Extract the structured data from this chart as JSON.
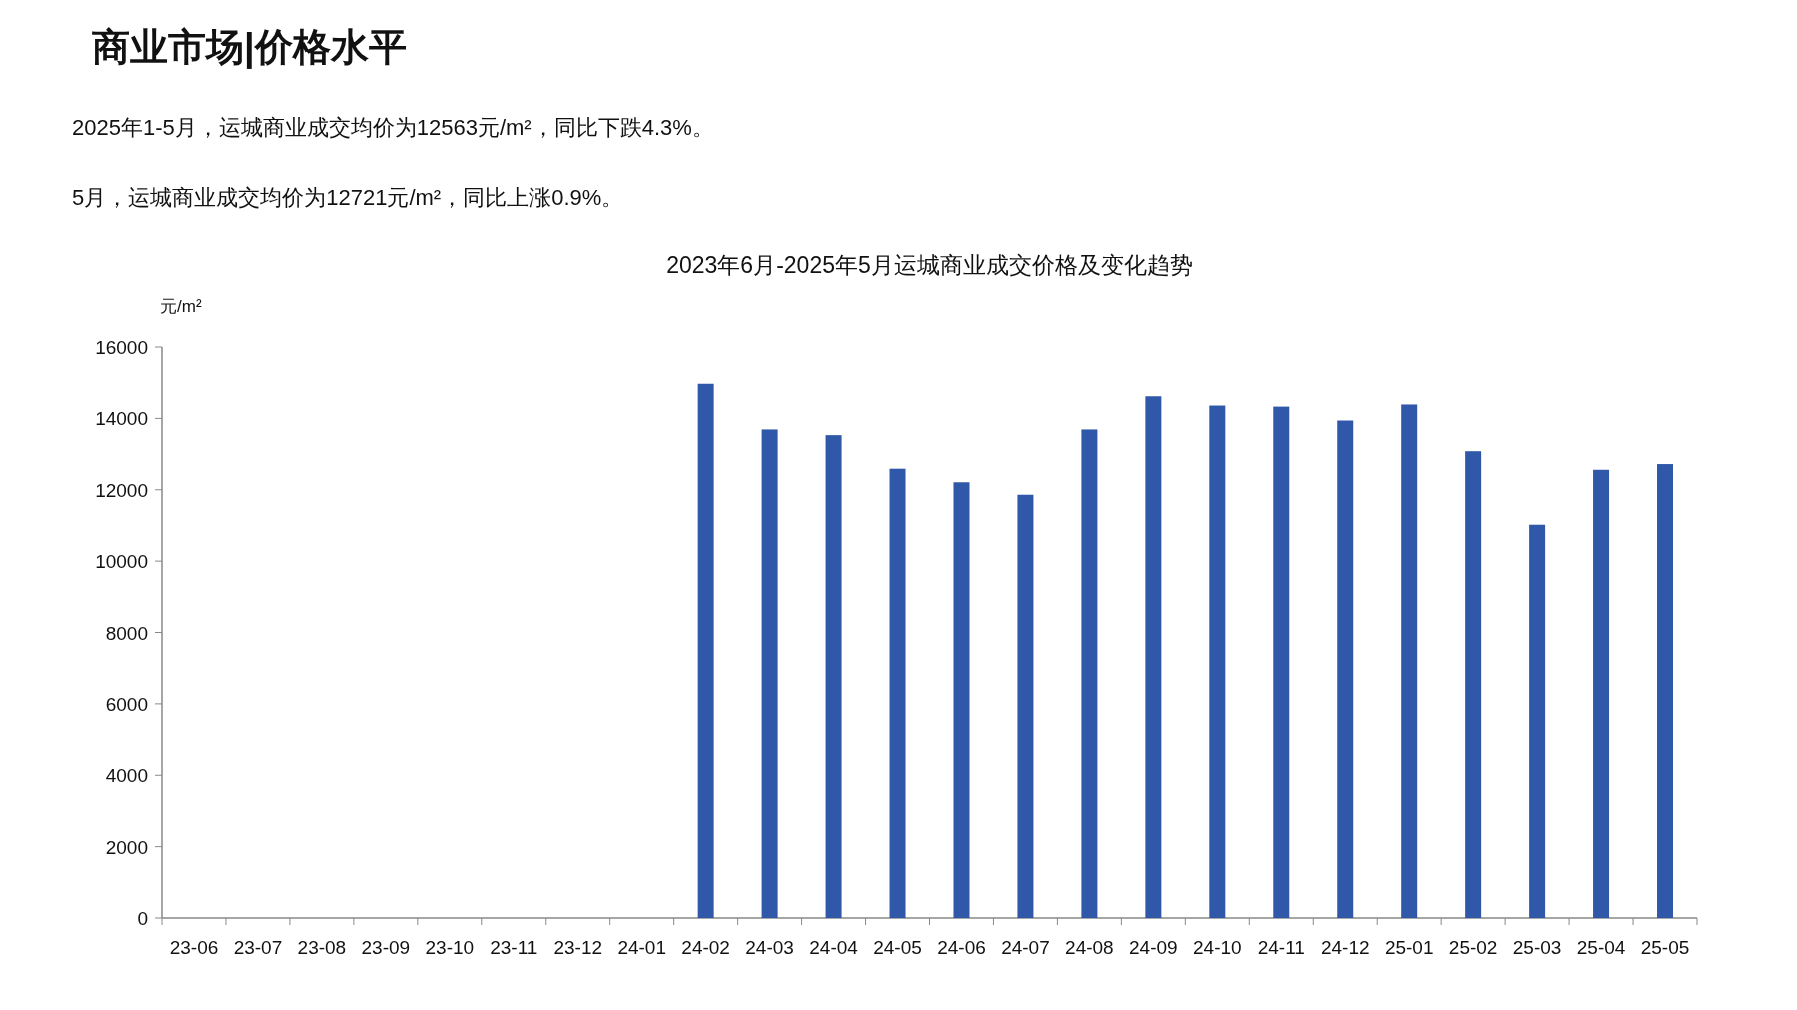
{
  "chart_data": {
    "type": "bar",
    "title": "商业市场|价格水平",
    "subtitle": "2023年6月-2025年5月运城商业成交价格及变化趋势",
    "ylabel": "元/m²",
    "annotations": [
      "2025年1-5月，运城商业成交均价为12563元/m²，同比下跌4.3%。",
      "5月，运城商业成交均价为12721元/m²，同比上涨0.9%。"
    ],
    "categories": [
      "23-06",
      "23-07",
      "23-08",
      "23-09",
      "23-10",
      "23-11",
      "23-12",
      "24-01",
      "24-02",
      "24-03",
      "24-04",
      "24-05",
      "24-06",
      "24-07",
      "24-08",
      "24-09",
      "24-10",
      "24-11",
      "24-12",
      "25-01",
      "25-02",
      "25-03",
      "25-04",
      "25-05"
    ],
    "values": [
      null,
      null,
      null,
      null,
      null,
      null,
      null,
      null,
      14970,
      13690,
      13530,
      12590,
      12210,
      11860,
      13690,
      14620,
      14360,
      14330,
      13940,
      14390,
      13080,
      11020,
      12560,
      12720
    ],
    "color": "#2f58a8",
    "ylim": [
      0,
      16000
    ],
    "yticks": [
      0,
      2000,
      4000,
      6000,
      8000,
      10000,
      12000,
      14000,
      16000
    ],
    "grid": false
  }
}
